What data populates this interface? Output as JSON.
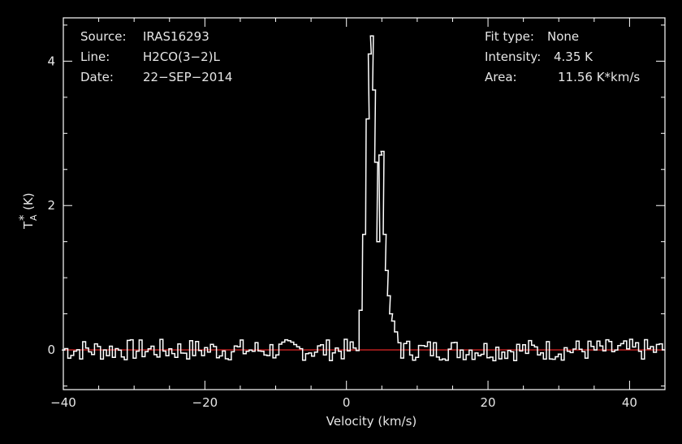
{
  "info_left": {
    "source_label": "Source:",
    "source_value": "IRAS16293",
    "line_label": "Line:",
    "line_value": "H2CO(3−2)L",
    "date_label": "Date:",
    "date_value": "22−SEP−2014"
  },
  "info_right": {
    "fit_label": "Fit type:",
    "fit_value": "None",
    "intensity_label": "Intensity:",
    "intensity_value": "4.35 K",
    "area_label": "Area:",
    "area_value": "11.56 K*km/s"
  },
  "colors": {
    "axes": "#ffffff",
    "trace": "#ffffff",
    "baseline": "#cc2222"
  },
  "chart_data": {
    "type": "line",
    "xlabel": "Velocity (km/s)",
    "ylabel_main": "T",
    "ylabel_sub": "A",
    "ylabel_sup": "*",
    "ylabel_unit": "(K)",
    "xlim": [
      -40,
      45
    ],
    "ylim": [
      -0.55,
      4.6
    ],
    "xticks": [
      -40,
      -20,
      0,
      20,
      40
    ],
    "xtick_labels": [
      "−40",
      "−20",
      "0",
      "20",
      "40"
    ],
    "yticks": [
      0,
      2,
      4
    ],
    "ytick_labels": [
      "0",
      "2",
      "4"
    ],
    "baseline": 0,
    "series": [
      {
        "x": [
          2,
          2.5,
          3,
          3.3,
          3.6,
          3.9,
          4.2,
          4.5,
          4.8,
          5.1,
          5.4,
          5.7,
          6.0,
          6.3,
          6.6,
          7.0,
          7.5
        ],
        "values": [
          0.55,
          1.6,
          3.2,
          4.1,
          4.35,
          3.6,
          2.6,
          1.5,
          2.7,
          2.75,
          1.6,
          1.1,
          0.75,
          0.5,
          0.4,
          0.25,
          0.1
        ]
      }
    ]
  }
}
